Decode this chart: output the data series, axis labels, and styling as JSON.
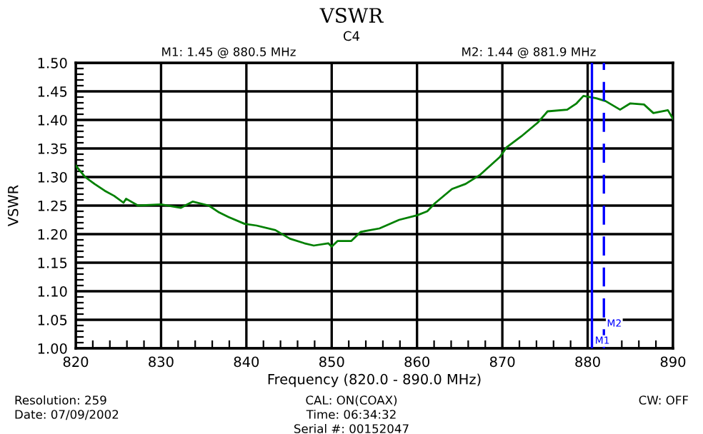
{
  "chart_data": {
    "type": "line",
    "title": "VSWR",
    "subtitle": "C4",
    "xlabel": "Frequency (820.0 - 890.0 MHz)",
    "ylabel": "VSWR",
    "series": [
      {
        "color": "#008000",
        "x": [
          820,
          821.1,
          822.2,
          823.4,
          824.5,
          825.6,
          825.9,
          827.3,
          830,
          832.3,
          833.7,
          835.6,
          836.8,
          837.9,
          839.8,
          841.2,
          843.4,
          845.1,
          846.8,
          847.9,
          849.6,
          850,
          850.7,
          852.3,
          853.4,
          855.6,
          857.9,
          860,
          861.2,
          862.1,
          864.1,
          865.7,
          867.4,
          869.7,
          870.5,
          872.2,
          874.2,
          875.3,
          877.6,
          878.7,
          879.5,
          881,
          882.1,
          883.8,
          885,
          886.6,
          887.7,
          889.4,
          890
        ],
        "values": [
          1.32,
          1.3,
          1.288,
          1.276,
          1.267,
          1.255,
          1.262,
          1.25,
          1.252,
          1.246,
          1.257,
          1.25,
          1.238,
          1.23,
          1.218,
          1.215,
          1.207,
          1.192,
          1.184,
          1.18,
          1.184,
          1.178,
          1.188,
          1.188,
          1.204,
          1.21,
          1.225,
          1.233,
          1.24,
          1.254,
          1.279,
          1.288,
          1.304,
          1.335,
          1.352,
          1.371,
          1.396,
          1.415,
          1.418,
          1.429,
          1.442,
          1.438,
          1.433,
          1.418,
          1.429,
          1.427,
          1.412,
          1.417,
          1.402
        ]
      }
    ],
    "xlim": [
      820,
      890
    ],
    "xticks": [
      820,
      830,
      840,
      850,
      860,
      870,
      880,
      890
    ],
    "ylim": [
      1.0,
      1.5
    ],
    "yticks": [
      {
        "value": 1.0,
        "label": "1.00"
      },
      {
        "value": 1.05,
        "label": "1.05"
      },
      {
        "value": 1.1,
        "label": "1.10"
      },
      {
        "value": 1.15,
        "label": "1.15"
      },
      {
        "value": 1.2,
        "label": "1.20"
      },
      {
        "value": 1.25,
        "label": "1.25"
      },
      {
        "value": 1.3,
        "label": "1.30"
      },
      {
        "value": 1.35,
        "label": "1.35"
      },
      {
        "value": 1.4,
        "label": "1.40"
      },
      {
        "value": 1.45,
        "label": "1.45"
      },
      {
        "value": 1.5,
        "label": "1.50"
      }
    ],
    "grid": true,
    "line_style": "solid",
    "marker": "none",
    "ref_lines": [
      {
        "axis": "x",
        "value": 880.5,
        "label": "M1",
        "color": "#0000ff",
        "line_style": "solid"
      },
      {
        "axis": "x",
        "value": 881.9,
        "label": "M2",
        "color": "#0000ff",
        "line_style": "dashed"
      }
    ],
    "annotations": [
      "M1: 1.45 @ 880.5 MHz",
      "M2: 1.44 @ 881.9 MHz",
      "Resolution: 259",
      "Date: 07/09/2002",
      "CAL: ON(COAX)",
      "Time: 06:34:32",
      "Serial #: 00152047",
      "CW: OFF"
    ]
  }
}
